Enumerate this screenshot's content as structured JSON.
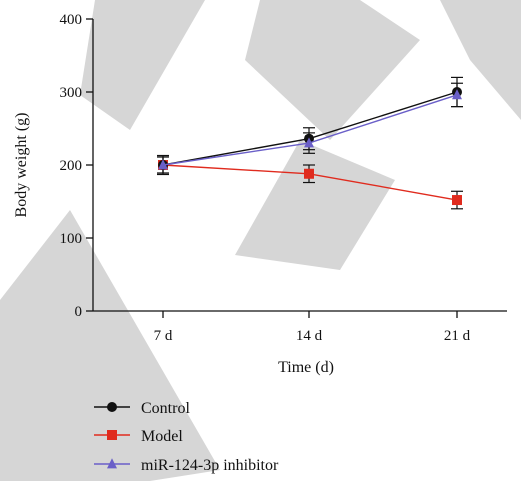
{
  "watermark_text": "RETRACTED",
  "chart_data": {
    "type": "line",
    "xlabel": "Time (d)",
    "ylabel": "Body weight (g)",
    "categories": [
      "7 d",
      "14 d",
      "21 d"
    ],
    "ylim": [
      0,
      400
    ],
    "yticks": [
      0,
      100,
      200,
      300,
      400
    ],
    "legend_position": "bottom-left",
    "series": [
      {
        "name": "Control",
        "color": "#111111",
        "marker": "circle",
        "values": [
          200,
          236,
          300
        ],
        "errors": [
          13,
          15,
          20
        ]
      },
      {
        "name": "Model",
        "color": "#e02b1e",
        "marker": "square",
        "values": [
          200,
          188,
          152
        ],
        "errors": [
          11,
          12,
          12
        ]
      },
      {
        "name": "miR-124-3p inhibitor",
        "color": "#6a5fc8",
        "marker": "triangle",
        "values": [
          200,
          230,
          296
        ],
        "errors": [
          11,
          14,
          16
        ]
      }
    ]
  }
}
